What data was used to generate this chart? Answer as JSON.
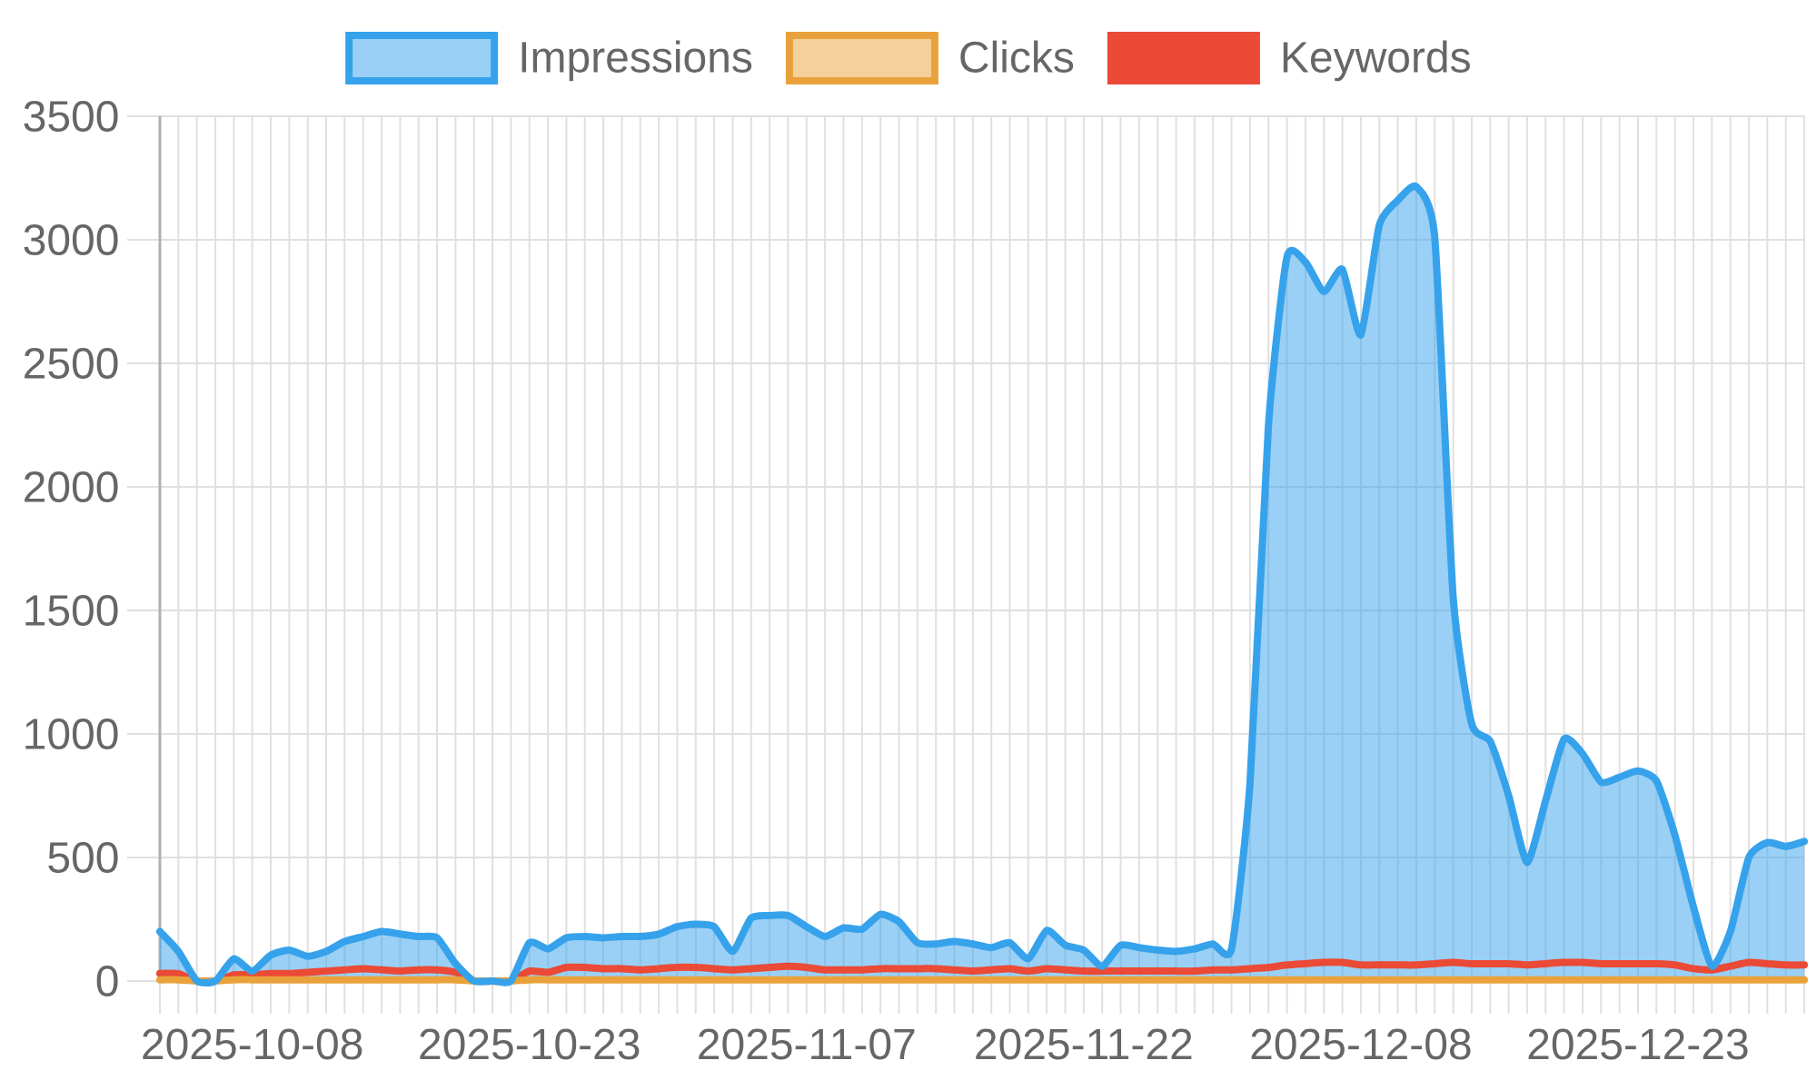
{
  "chart_data": {
    "type": "area",
    "categories": [
      null,
      null,
      null,
      null,
      null,
      "2025-10-08",
      null,
      null,
      null,
      null,
      null,
      null,
      null,
      null,
      null,
      null,
      null,
      null,
      null,
      null,
      "2025-10-23",
      null,
      null,
      null,
      null,
      null,
      null,
      null,
      null,
      null,
      null,
      null,
      null,
      null,
      null,
      "2025-11-07",
      null,
      null,
      null,
      null,
      null,
      null,
      null,
      null,
      null,
      null,
      null,
      null,
      null,
      null,
      "2025-11-22",
      null,
      null,
      null,
      null,
      null,
      null,
      null,
      null,
      null,
      null,
      null,
      null,
      null,
      null,
      "2025-12-08",
      null,
      null,
      null,
      null,
      null,
      null,
      null,
      null,
      null,
      null,
      null,
      null,
      null,
      null,
      "2025-12-23",
      null,
      null,
      null,
      null,
      null,
      null,
      null,
      null,
      null
    ],
    "series": [
      {
        "name": "Impressions",
        "color": "#36a2eb",
        "values": [
          200,
          120,
          0,
          0,
          90,
          40,
          105,
          125,
          100,
          120,
          160,
          180,
          200,
          190,
          180,
          175,
          70,
          0,
          0,
          0,
          155,
          130,
          175,
          180,
          175,
          180,
          180,
          190,
          220,
          230,
          220,
          120,
          255,
          265,
          265,
          220,
          180,
          215,
          210,
          270,
          240,
          155,
          150,
          160,
          150,
          135,
          155,
          90,
          205,
          145,
          125,
          60,
          145,
          135,
          125,
          120,
          130,
          150,
          130,
          800,
          2250,
          2930,
          2910,
          2790,
          2880,
          2615,
          3060,
          3160,
          3215,
          3010,
          1550,
          1040,
          970,
          750,
          480,
          730,
          980,
          920,
          805,
          825,
          850,
          810,
          590,
          300,
          60,
          200,
          500,
          560,
          545,
          565
        ]
      },
      {
        "name": "Clicks",
        "color": "#e9a23b",
        "values": [
          5,
          5,
          0,
          0,
          5,
          5,
          5,
          5,
          5,
          5,
          5,
          5,
          5,
          5,
          5,
          5,
          5,
          0,
          0,
          0,
          5,
          5,
          5,
          5,
          5,
          5,
          5,
          5,
          5,
          5,
          5,
          5,
          5,
          5,
          5,
          5,
          5,
          5,
          5,
          5,
          5,
          5,
          5,
          5,
          5,
          5,
          5,
          5,
          5,
          5,
          5,
          5,
          5,
          5,
          5,
          5,
          5,
          5,
          5,
          5,
          5,
          5,
          5,
          5,
          5,
          5,
          5,
          5,
          5,
          5,
          5,
          5,
          5,
          5,
          5,
          5,
          5,
          5,
          5,
          5,
          5,
          5,
          5,
          5,
          5,
          5,
          5,
          5,
          5,
          5
        ]
      },
      {
        "name": "Keywords",
        "type": "line",
        "color": "#ea4a36",
        "values": [
          30,
          30,
          0,
          0,
          25,
          25,
          30,
          30,
          35,
          40,
          45,
          50,
          45,
          40,
          45,
          45,
          35,
          0,
          0,
          0,
          40,
          35,
          55,
          55,
          50,
          50,
          45,
          50,
          55,
          55,
          50,
          45,
          50,
          55,
          60,
          55,
          45,
          45,
          45,
          50,
          50,
          50,
          50,
          45,
          40,
          45,
          50,
          40,
          50,
          45,
          40,
          40,
          40,
          40,
          40,
          40,
          40,
          45,
          45,
          50,
          55,
          65,
          70,
          75,
          75,
          65,
          65,
          65,
          65,
          70,
          75,
          70,
          70,
          70,
          65,
          70,
          75,
          75,
          70,
          70,
          70,
          70,
          65,
          50,
          45,
          60,
          75,
          70,
          65,
          65
        ]
      }
    ],
    "ylim": [
      0,
      3500
    ],
    "yticks": [
      0,
      500,
      1000,
      1500,
      2000,
      2500,
      3000,
      3500
    ],
    "grid": true,
    "legend": "top"
  }
}
